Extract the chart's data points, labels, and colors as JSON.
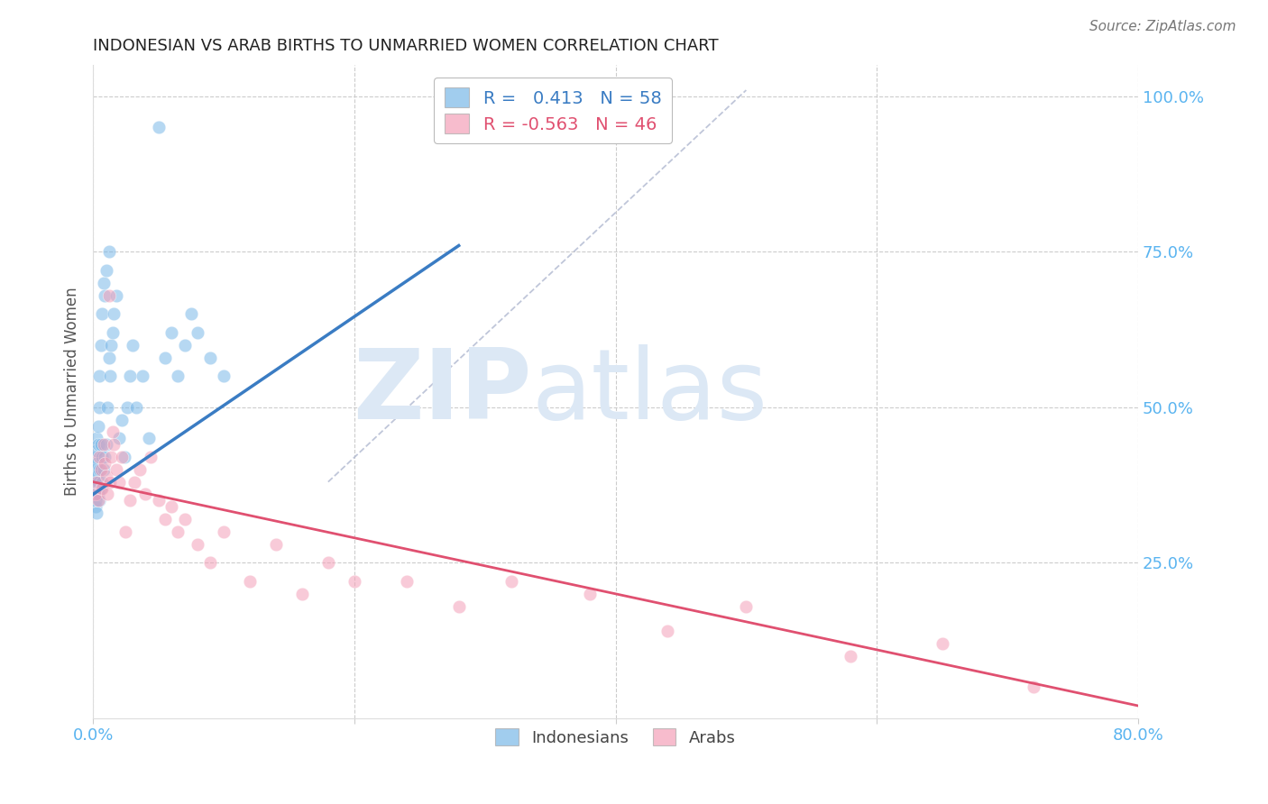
{
  "title": "INDONESIAN VS ARAB BIRTHS TO UNMARRIED WOMEN CORRELATION CHART",
  "source": "Source: ZipAtlas.com",
  "ylabel": "Births to Unmarried Women",
  "ytick_color": "#5ab4f0",
  "xtick_color": "#5ab4f0",
  "background_color": "#ffffff",
  "grid_color": "#cccccc",
  "blue_color": "#7ab8e8",
  "pink_color": "#f4a0b8",
  "blue_line_color": "#3a7cc3",
  "pink_line_color": "#e05070",
  "dashed_line_color": "#b0b8d0",
  "legend_blue_label": "R =   0.413   N = 58",
  "legend_pink_label": "R = -0.563   N = 46",
  "legend_indonesians": "Indonesians",
  "legend_arabs": "Arabs",
  "watermark_zip": "ZIP",
  "watermark_atlas": "atlas",
  "watermark_color": "#dce8f5",
  "x_min": 0.0,
  "x_max": 0.8,
  "y_min": 0.0,
  "y_max": 1.05,
  "indonesian_x": [
    0.001,
    0.001,
    0.001,
    0.002,
    0.002,
    0.002,
    0.002,
    0.003,
    0.003,
    0.003,
    0.003,
    0.003,
    0.004,
    0.004,
    0.004,
    0.004,
    0.005,
    0.005,
    0.005,
    0.005,
    0.006,
    0.006,
    0.006,
    0.007,
    0.007,
    0.007,
    0.008,
    0.008,
    0.009,
    0.009,
    0.01,
    0.01,
    0.011,
    0.012,
    0.012,
    0.013,
    0.014,
    0.015,
    0.016,
    0.018,
    0.02,
    0.022,
    0.024,
    0.026,
    0.028,
    0.03,
    0.033,
    0.038,
    0.043,
    0.05,
    0.055,
    0.06,
    0.065,
    0.07,
    0.075,
    0.08,
    0.09,
    0.1
  ],
  "indonesian_y": [
    0.36,
    0.38,
    0.4,
    0.34,
    0.37,
    0.42,
    0.35,
    0.33,
    0.39,
    0.41,
    0.43,
    0.45,
    0.36,
    0.38,
    0.44,
    0.47,
    0.35,
    0.4,
    0.5,
    0.55,
    0.37,
    0.44,
    0.6,
    0.38,
    0.42,
    0.65,
    0.4,
    0.7,
    0.42,
    0.68,
    0.44,
    0.72,
    0.5,
    0.58,
    0.75,
    0.55,
    0.6,
    0.62,
    0.65,
    0.68,
    0.45,
    0.48,
    0.42,
    0.5,
    0.55,
    0.6,
    0.5,
    0.55,
    0.45,
    0.95,
    0.58,
    0.62,
    0.55,
    0.6,
    0.65,
    0.62,
    0.58,
    0.55
  ],
  "arab_x": [
    0.002,
    0.003,
    0.004,
    0.005,
    0.006,
    0.007,
    0.008,
    0.009,
    0.01,
    0.011,
    0.012,
    0.013,
    0.014,
    0.015,
    0.016,
    0.018,
    0.02,
    0.022,
    0.025,
    0.028,
    0.032,
    0.036,
    0.04,
    0.044,
    0.05,
    0.055,
    0.06,
    0.065,
    0.07,
    0.08,
    0.09,
    0.1,
    0.12,
    0.14,
    0.16,
    0.18,
    0.2,
    0.24,
    0.28,
    0.32,
    0.38,
    0.44,
    0.5,
    0.58,
    0.65,
    0.72
  ],
  "arab_y": [
    0.36,
    0.38,
    0.35,
    0.42,
    0.4,
    0.37,
    0.44,
    0.41,
    0.39,
    0.36,
    0.68,
    0.38,
    0.42,
    0.46,
    0.44,
    0.4,
    0.38,
    0.42,
    0.3,
    0.35,
    0.38,
    0.4,
    0.36,
    0.42,
    0.35,
    0.32,
    0.34,
    0.3,
    0.32,
    0.28,
    0.25,
    0.3,
    0.22,
    0.28,
    0.2,
    0.25,
    0.22,
    0.22,
    0.18,
    0.22,
    0.2,
    0.14,
    0.18,
    0.1,
    0.12,
    0.05
  ]
}
